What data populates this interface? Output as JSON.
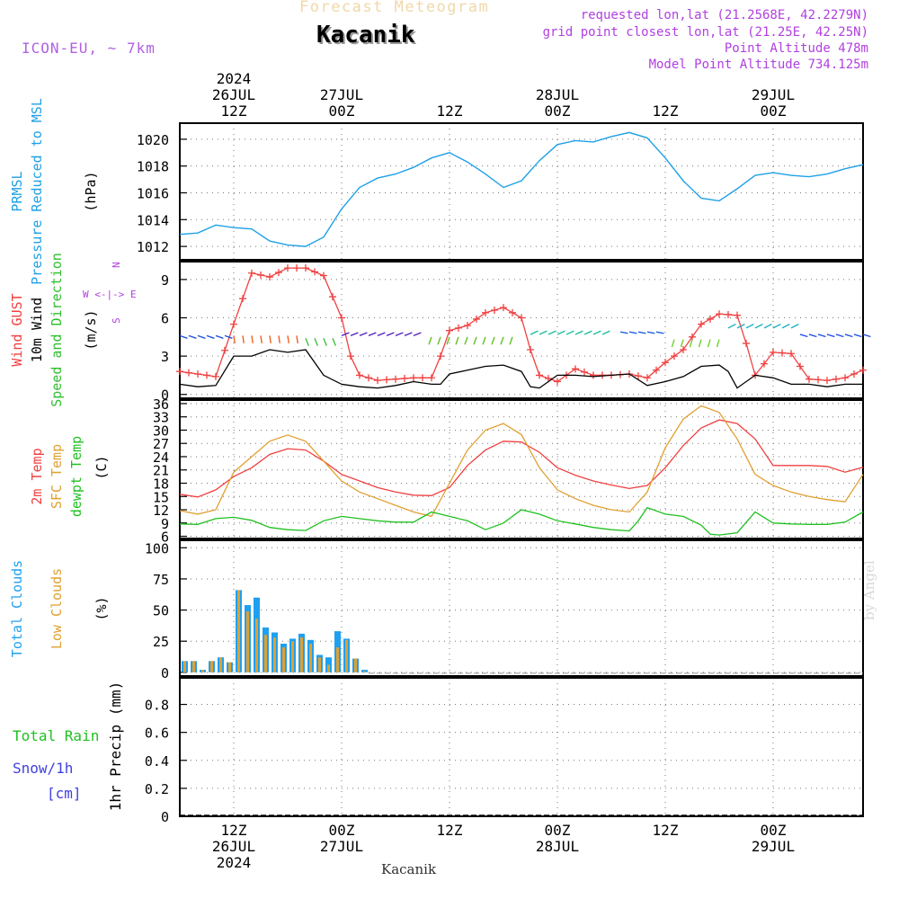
{
  "header": {
    "subtitle": "Forecast Meteogram",
    "location": "Kacanik",
    "model": "ICON-EU, ~ 7km",
    "requested": "requested lon,lat (21.2568E, 42.2279N)",
    "gridpoint": "grid point closest lon,lat (21.25E, 42.25N)",
    "point_alt": "Point Altitude 478m",
    "model_alt": "Model Point Altitude 734.125m"
  },
  "footer": {
    "location": "Kacanik",
    "credit": "by Angel"
  },
  "colors": {
    "pressure": "#1ea0e6",
    "gust": "#f04040",
    "wind": "#000000",
    "dir": "#30c030",
    "compass": "#b040e0",
    "temp": "#f04040",
    "sfc": "#e0a030",
    "dew": "#20c020",
    "total_clouds": "#1ea0f0",
    "low_clouds": "#e0a030",
    "rain": "#20c020",
    "snow": "#4040e0"
  },
  "chart_data": [
    {
      "type": "line",
      "id": "pressure",
      "title": "PRMSL Pressure Reduced to MSL",
      "ylabel": "(hPa)",
      "label_lines": [
        "PRMSL",
        "Pressure Reduced to MSL"
      ],
      "unit": "(hPa)",
      "ylim": [
        1011,
        1021.2
      ],
      "yticks": [
        1012,
        1014,
        1016,
        1018,
        1020
      ],
      "series": [
        {
          "name": "PRMSL",
          "color": "#1ea0e6",
          "x": [
            0,
            2,
            4,
            6,
            8,
            10,
            12,
            14,
            16,
            18,
            20,
            22,
            24,
            26,
            28,
            30,
            32,
            34,
            36,
            38,
            40,
            42,
            44,
            46,
            48,
            50,
            52,
            54,
            56,
            58,
            60,
            62,
            64,
            66,
            68,
            70,
            72,
            74,
            76
          ],
          "values": [
            1012.9,
            1013.0,
            1013.6,
            1013.4,
            1013.3,
            1012.4,
            1012.1,
            1012.0,
            1012.7,
            1014.8,
            1016.4,
            1017.1,
            1017.4,
            1017.9,
            1018.6,
            1019.0,
            1018.3,
            1017.4,
            1016.4,
            1016.9,
            1018.4,
            1019.6,
            1019.9,
            1019.8,
            1020.2,
            1020.5,
            1020.1,
            1018.6,
            1016.9,
            1015.6,
            1015.4,
            1016.3,
            1017.3,
            1017.5,
            1017.3,
            1017.2,
            1017.4,
            1017.8,
            1018.1
          ]
        }
      ],
      "xticks": {
        "major": [
          "2024 26JUL 12Z",
          "27JUL 00Z",
          "12Z",
          "28JUL 00Z",
          "12Z",
          "29JUL 00Z"
        ]
      }
    },
    {
      "type": "line",
      "id": "wind",
      "title": "Wind GUST / 10m Wind Speed and Direction",
      "ylabel": "(m/s)",
      "label_lines": [
        "Wind GUST",
        "10m Wind",
        "Speed and Direction"
      ],
      "unit": "(m/s)",
      "compass": [
        "N",
        "W <-|-> E",
        "S"
      ],
      "ylim": [
        -0.3,
        10.4
      ],
      "yticks": [
        0,
        3,
        6,
        9
      ],
      "series": [
        {
          "name": "Wind GUST",
          "color": "#f04040",
          "marker": "+",
          "x": [
            0,
            2,
            4,
            6,
            8,
            10,
            12,
            14,
            16,
            18,
            19,
            20,
            22,
            24,
            26,
            28,
            29,
            30,
            32,
            34,
            36,
            38,
            39,
            40,
            42,
            44,
            46,
            48,
            50,
            52,
            54,
            56,
            58,
            60,
            62,
            63,
            64,
            66,
            68,
            70,
            72,
            74,
            76
          ],
          "values": [
            1.8,
            1.6,
            1.4,
            5.5,
            9.5,
            9.2,
            9.9,
            9.9,
            9.3,
            6.0,
            3.0,
            1.5,
            1.1,
            1.2,
            1.3,
            1.3,
            3.0,
            5.0,
            5.4,
            6.4,
            6.8,
            6.0,
            3.5,
            1.5,
            1.0,
            2.0,
            1.5,
            1.5,
            1.6,
            1.3,
            2.5,
            3.5,
            5.5,
            6.3,
            6.2,
            4.0,
            1.5,
            3.3,
            3.2,
            1.2,
            1.1,
            1.3,
            1.9
          ]
        },
        {
          "name": "10m Wind",
          "color": "#000000",
          "x": [
            0,
            2,
            4,
            6,
            8,
            10,
            12,
            14,
            16,
            18,
            20,
            22,
            24,
            26,
            28,
            29,
            30,
            32,
            34,
            36,
            38,
            39,
            40,
            42,
            44,
            46,
            48,
            50,
            52,
            54,
            56,
            58,
            60,
            61,
            62,
            64,
            66,
            68,
            70,
            72,
            74,
            76
          ],
          "values": [
            0.8,
            0.6,
            0.7,
            3.0,
            3.0,
            3.5,
            3.3,
            3.5,
            1.5,
            0.8,
            0.6,
            0.5,
            0.7,
            1.0,
            0.8,
            0.8,
            1.6,
            1.9,
            2.2,
            2.3,
            1.8,
            0.6,
            0.5,
            1.5,
            1.5,
            1.4,
            1.5,
            1.6,
            0.7,
            1.0,
            1.4,
            2.2,
            2.3,
            1.8,
            0.5,
            1.5,
            1.3,
            0.8,
            0.8,
            0.6,
            0.8,
            0.8
          ]
        }
      ],
      "direction_arrows": "Speed and Direction (arrow glyphs drawn from series)",
      "xticks": {
        "major": [
          "2024 26JUL 12Z",
          "27JUL 00Z",
          "12Z",
          "28JUL 00Z",
          "12Z",
          "29JUL 00Z"
        ]
      }
    },
    {
      "type": "line",
      "id": "temperature",
      "title": "2m Temp / SFC Temp / dewpt Temp",
      "ylabel": "(C)",
      "label_lines": [
        "2m Temp",
        "SFC Temp",
        "dewpt Temp"
      ],
      "unit": "(C)",
      "ylim": [
        5.5,
        36.8
      ],
      "yticks": [
        6,
        9,
        12,
        15,
        18,
        21,
        24,
        27,
        30,
        33,
        36
      ],
      "series": [
        {
          "name": "2m Temp",
          "color": "#f04040",
          "x": [
            0,
            2,
            4,
            6,
            8,
            10,
            12,
            14,
            16,
            18,
            20,
            22,
            24,
            26,
            28,
            30,
            32,
            34,
            36,
            38,
            40,
            42,
            44,
            46,
            48,
            50,
            52,
            54,
            56,
            58,
            60,
            62,
            64,
            66,
            68,
            70,
            72,
            74,
            76
          ],
          "values": [
            15.5,
            14.9,
            16.5,
            19.5,
            21.5,
            24.5,
            25.8,
            25.5,
            23.0,
            20.0,
            18.5,
            17.0,
            16.0,
            15.3,
            15.2,
            17.0,
            22.0,
            25.5,
            27.5,
            27.3,
            25.0,
            21.5,
            19.8,
            18.5,
            17.6,
            16.8,
            17.5,
            21.5,
            26.5,
            30.5,
            32.3,
            31.5,
            28.0,
            22.0,
            22.0,
            22.0,
            21.8,
            20.5,
            21.6
          ]
        },
        {
          "name": "SFC Temp",
          "color": "#e0a030",
          "x": [
            0,
            2,
            4,
            6,
            8,
            10,
            12,
            14,
            16,
            18,
            20,
            22,
            24,
            26,
            28,
            30,
            32,
            34,
            36,
            38,
            40,
            42,
            44,
            46,
            48,
            50,
            52,
            54,
            56,
            58,
            60,
            62,
            64,
            66,
            68,
            70,
            72,
            74,
            76
          ],
          "values": [
            11.8,
            11.0,
            12.0,
            20.5,
            24.0,
            27.5,
            28.9,
            27.5,
            23.0,
            18.5,
            16.0,
            14.5,
            13.0,
            11.5,
            10.5,
            18.0,
            25.5,
            30.0,
            31.5,
            29.0,
            21.5,
            16.5,
            14.5,
            13.0,
            12.0,
            11.5,
            16.0,
            26.0,
            32.5,
            35.5,
            34.0,
            28.0,
            20.0,
            17.5,
            16.0,
            15.0,
            14.3,
            13.8,
            20.0
          ]
        },
        {
          "name": "dewpt Temp",
          "color": "#20c020",
          "x": [
            0,
            2,
            4,
            6,
            8,
            10,
            12,
            14,
            16,
            18,
            20,
            22,
            24,
            26,
            28,
            30,
            32,
            34,
            36,
            38,
            40,
            42,
            44,
            46,
            48,
            50,
            51,
            52,
            54,
            56,
            58,
            59,
            60,
            62,
            64,
            66,
            68,
            70,
            72,
            74,
            76
          ],
          "values": [
            8.8,
            8.7,
            10.0,
            10.3,
            9.6,
            8.0,
            7.5,
            7.3,
            9.5,
            10.5,
            10.0,
            9.5,
            9.2,
            9.2,
            11.5,
            10.5,
            9.5,
            7.5,
            9.0,
            12.0,
            11.0,
            9.5,
            8.8,
            8.0,
            7.5,
            7.2,
            9.5,
            12.5,
            11.0,
            10.5,
            8.5,
            6.5,
            6.3,
            6.8,
            11.5,
            9.0,
            8.8,
            8.7,
            8.7,
            9.2,
            11.5
          ]
        }
      ],
      "xticks": {
        "major": [
          "2024 26JUL 12Z",
          "27JUL 00Z",
          "12Z",
          "28JUL 00Z",
          "12Z",
          "29JUL 00Z"
        ]
      }
    },
    {
      "type": "bar",
      "id": "clouds",
      "title": "Total Clouds / Low Clouds",
      "ylabel": "(%)",
      "label_lines": [
        "Total Clouds",
        "Low Clouds"
      ],
      "unit": "(%)",
      "ylim": [
        -3,
        106
      ],
      "yticks": [
        0,
        25,
        50,
        75,
        100
      ],
      "x": [
        0,
        1,
        2,
        3,
        4,
        5,
        6,
        7,
        8,
        9,
        10,
        11,
        12,
        13,
        14,
        15,
        16,
        17,
        18,
        19,
        20
      ],
      "series": [
        {
          "name": "Total Clouds",
          "color": "#1ea0f0",
          "values": [
            9,
            9,
            2,
            9,
            12,
            8,
            66,
            54,
            60,
            36,
            32,
            23,
            27,
            31,
            26,
            14,
            12,
            33,
            27,
            11,
            2
          ]
        },
        {
          "name": "Low Clouds",
          "color": "#e0a030",
          "values": [
            9,
            9,
            2,
            9,
            12,
            8,
            66,
            49,
            43,
            30,
            28,
            20,
            25,
            28,
            23,
            12,
            6,
            20,
            26,
            11,
            1
          ]
        }
      ],
      "xticks": {
        "major": [
          "2024 26JUL 12Z",
          "27JUL 00Z",
          "12Z",
          "28JUL 00Z",
          "12Z",
          "29JUL 00Z"
        ]
      }
    },
    {
      "type": "bar",
      "id": "precip",
      "title": "Total Rain / Snow/1h [cm]",
      "ylabel": "1hr Precip (mm)",
      "label_lines": [
        "Total Rain",
        "Snow/1h",
        "[cm]"
      ],
      "unit": "1hr Precip (mm)",
      "ylim": [
        0,
        0.99
      ],
      "yticks": [
        0,
        0.2,
        0.4,
        0.6,
        0.8
      ],
      "series": [
        {
          "name": "Total Rain",
          "color": "#20c020",
          "values": []
        },
        {
          "name": "Snow/1h",
          "color": "#4040e0",
          "values": []
        }
      ],
      "xticks": {
        "bottom": [
          {
            "lines": [
              "12Z",
              "26JUL",
              "2024"
            ]
          },
          {
            "lines": [
              "00Z",
              "27JUL"
            ]
          },
          {
            "lines": [
              "12Z"
            ]
          },
          {
            "lines": [
              "00Z",
              "28JUL"
            ]
          },
          {
            "lines": [
              "12Z"
            ]
          },
          {
            "lines": [
              "00Z",
              "29JUL"
            ]
          }
        ]
      }
    }
  ],
  "top_axis": [
    {
      "lines": [
        "2024",
        "26JUL",
        "12Z"
      ]
    },
    {
      "lines": [
        "27JUL",
        "00Z"
      ]
    },
    {
      "lines": [
        "12Z"
      ]
    },
    {
      "lines": [
        "28JUL",
        "00Z"
      ]
    },
    {
      "lines": [
        "12Z"
      ]
    },
    {
      "lines": [
        "29JUL",
        "00Z"
      ]
    }
  ]
}
